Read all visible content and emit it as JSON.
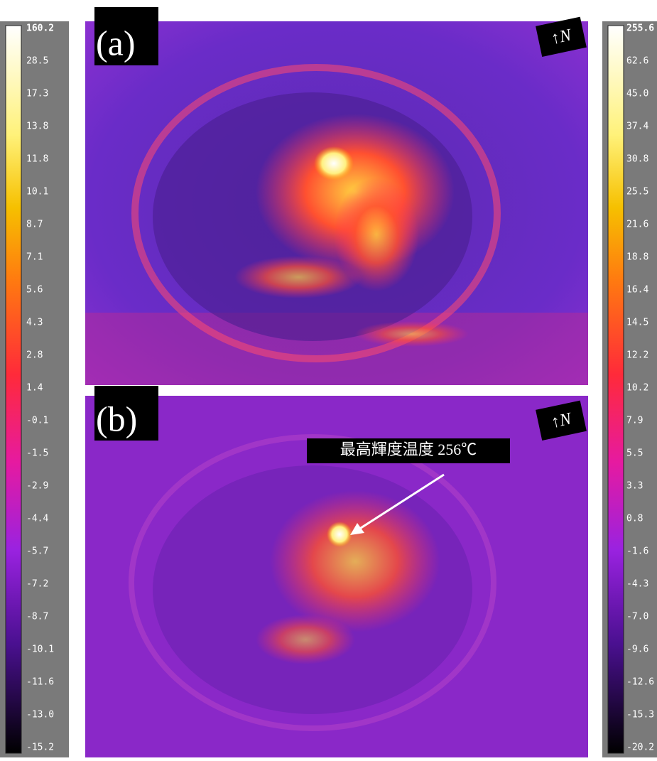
{
  "left_scale": {
    "labels": [
      "160.2",
      "28.5",
      "17.3",
      "13.8",
      "11.8",
      "10.1",
      "8.7",
      "7.1",
      "5.6",
      "4.3",
      "2.8",
      "1.4",
      "-0.1",
      "-1.5",
      "-2.9",
      "-4.4",
      "-5.7",
      "-7.2",
      "-8.7",
      "-10.1",
      "-11.6",
      "-13.0",
      "-15.2"
    ]
  },
  "right_scale": {
    "labels": [
      "255.6",
      "62.6",
      "45.0",
      "37.4",
      "30.8",
      "25.5",
      "21.6",
      "18.8",
      "16.4",
      "14.5",
      "12.2",
      "10.2",
      "7.9",
      "5.5",
      "3.3",
      "0.8",
      "-1.6",
      "-4.3",
      "-7.0",
      "-9.6",
      "-12.6",
      "-15.3",
      "-20.2"
    ]
  },
  "panels": [
    {
      "label": "(a)",
      "north": "↑N"
    },
    {
      "label": "(b)",
      "north": "↑N",
      "annotation": "最高輝度温度 256℃"
    }
  ]
}
